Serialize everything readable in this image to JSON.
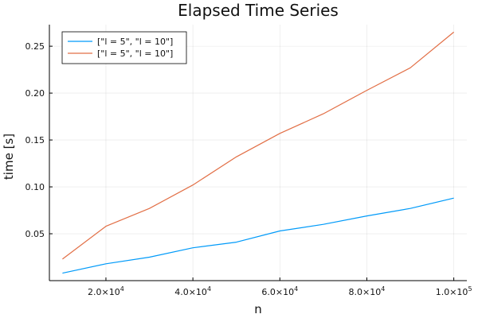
{
  "chart_data": {
    "type": "line",
    "title": "Elapsed Time Series",
    "xlabel": "n",
    "ylabel": "time [s]",
    "xlim": [
      7000,
      103000
    ],
    "ylim": [
      0.0,
      0.273
    ],
    "x_ticks": [
      {
        "value": 20000,
        "mant": "2.0",
        "exp": "4"
      },
      {
        "value": 40000,
        "mant": "4.0",
        "exp": "4"
      },
      {
        "value": 60000,
        "mant": "6.0",
        "exp": "4"
      },
      {
        "value": 80000,
        "mant": "8.0",
        "exp": "4"
      },
      {
        "value": 100000,
        "mant": "1.0",
        "exp": "5"
      }
    ],
    "y_ticks": [
      {
        "value": 0.05,
        "label": "0.05"
      },
      {
        "value": 0.1,
        "label": "0.10"
      },
      {
        "value": 0.15,
        "label": "0.15"
      },
      {
        "value": 0.2,
        "label": "0.20"
      },
      {
        "value": 0.25,
        "label": "0.25"
      }
    ],
    "grid": true,
    "legend": "top-left",
    "x": [
      10000,
      20000,
      30000,
      40000,
      50000,
      60000,
      70000,
      80000,
      90000,
      100000
    ],
    "series": [
      {
        "name": "[\"l = 5\", \"l = 10\"]",
        "color": "#009af9",
        "values": [
          0.008,
          0.018,
          0.025,
          0.035,
          0.041,
          0.053,
          0.06,
          0.069,
          0.077,
          0.088
        ]
      },
      {
        "name": "[\"l = 5\", \"l = 10\"]",
        "color": "#e26f46",
        "values": [
          0.023,
          0.058,
          0.077,
          0.102,
          0.132,
          0.157,
          0.178,
          0.203,
          0.227,
          0.265
        ]
      }
    ]
  }
}
